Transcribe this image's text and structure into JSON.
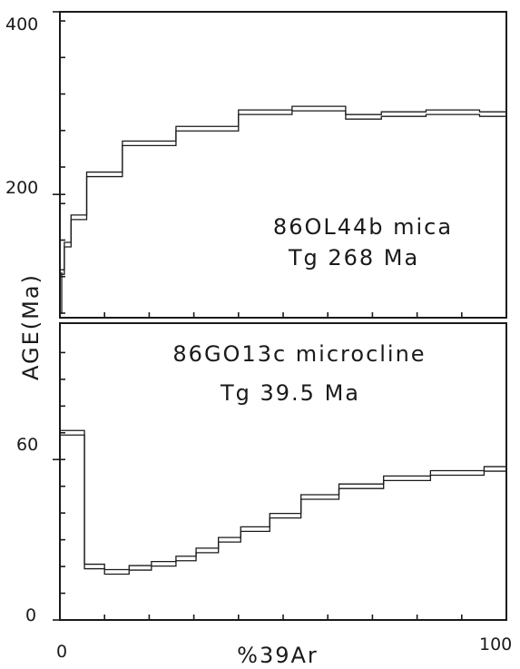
{
  "chart_data": [
    {
      "type": "line",
      "step": true,
      "panel": "top",
      "annotation_lines": [
        "86OL44b mica",
        "Tg 268 Ma"
      ],
      "x_ticks": [
        0,
        100
      ],
      "y_ticks": [
        "400",
        "200"
      ],
      "ylim": [
        65,
        400
      ],
      "xlim": [
        0,
        100
      ],
      "steps": [
        {
          "x0": 0,
          "x1": 1,
          "y": 115
        },
        {
          "x0": 1,
          "x1": 2.5,
          "y": 145
        },
        {
          "x0": 2.5,
          "x1": 6,
          "y": 175
        },
        {
          "x0": 6,
          "x1": 14,
          "y": 222
        },
        {
          "x0": 14,
          "x1": 26,
          "y": 256
        },
        {
          "x0": 26,
          "x1": 40,
          "y": 272
        },
        {
          "x0": 40,
          "x1": 52,
          "y": 290
        },
        {
          "x0": 52,
          "x1": 64,
          "y": 294
        },
        {
          "x0": 64,
          "x1": 72,
          "y": 285
        },
        {
          "x0": 72,
          "x1": 82,
          "y": 288
        },
        {
          "x0": 82,
          "x1": 94,
          "y": 290
        },
        {
          "x0": 94,
          "x1": 100,
          "y": 288
        }
      ]
    },
    {
      "type": "line",
      "step": true,
      "panel": "bottom",
      "annotation_lines": [
        "86GO13c microcline",
        "Tg 39.5 Ma"
      ],
      "x_ticks": [
        0,
        100
      ],
      "y_ticks": [
        "60",
        "0"
      ],
      "ylim": [
        0,
        111
      ],
      "xlim": [
        0,
        100
      ],
      "steps": [
        {
          "x0": 0,
          "x1": 5.5,
          "y": 70
        },
        {
          "x0": 5.5,
          "x1": 10,
          "y": 20
        },
        {
          "x0": 10,
          "x1": 15.5,
          "y": 18
        },
        {
          "x0": 15.5,
          "x1": 20.5,
          "y": 19.5
        },
        {
          "x0": 20.5,
          "x1": 26,
          "y": 21
        },
        {
          "x0": 26,
          "x1": 30.5,
          "y": 23
        },
        {
          "x0": 30.5,
          "x1": 35.5,
          "y": 26
        },
        {
          "x0": 35.5,
          "x1": 40.5,
          "y": 30
        },
        {
          "x0": 40.5,
          "x1": 47,
          "y": 34
        },
        {
          "x0": 47,
          "x1": 54,
          "y": 39
        },
        {
          "x0": 54,
          "x1": 62.5,
          "y": 46
        },
        {
          "x0": 62.5,
          "x1": 72.5,
          "y": 50
        },
        {
          "x0": 72.5,
          "x1": 83,
          "y": 53
        },
        {
          "x0": 83,
          "x1": 95,
          "y": 55
        },
        {
          "x0": 95,
          "x1": 100,
          "y": 56.5
        }
      ]
    }
  ],
  "shared": {
    "ylabel": "AGE(Ma)",
    "xlabel": "%39Ar",
    "x_tick_labels": [
      "0",
      "100"
    ]
  }
}
